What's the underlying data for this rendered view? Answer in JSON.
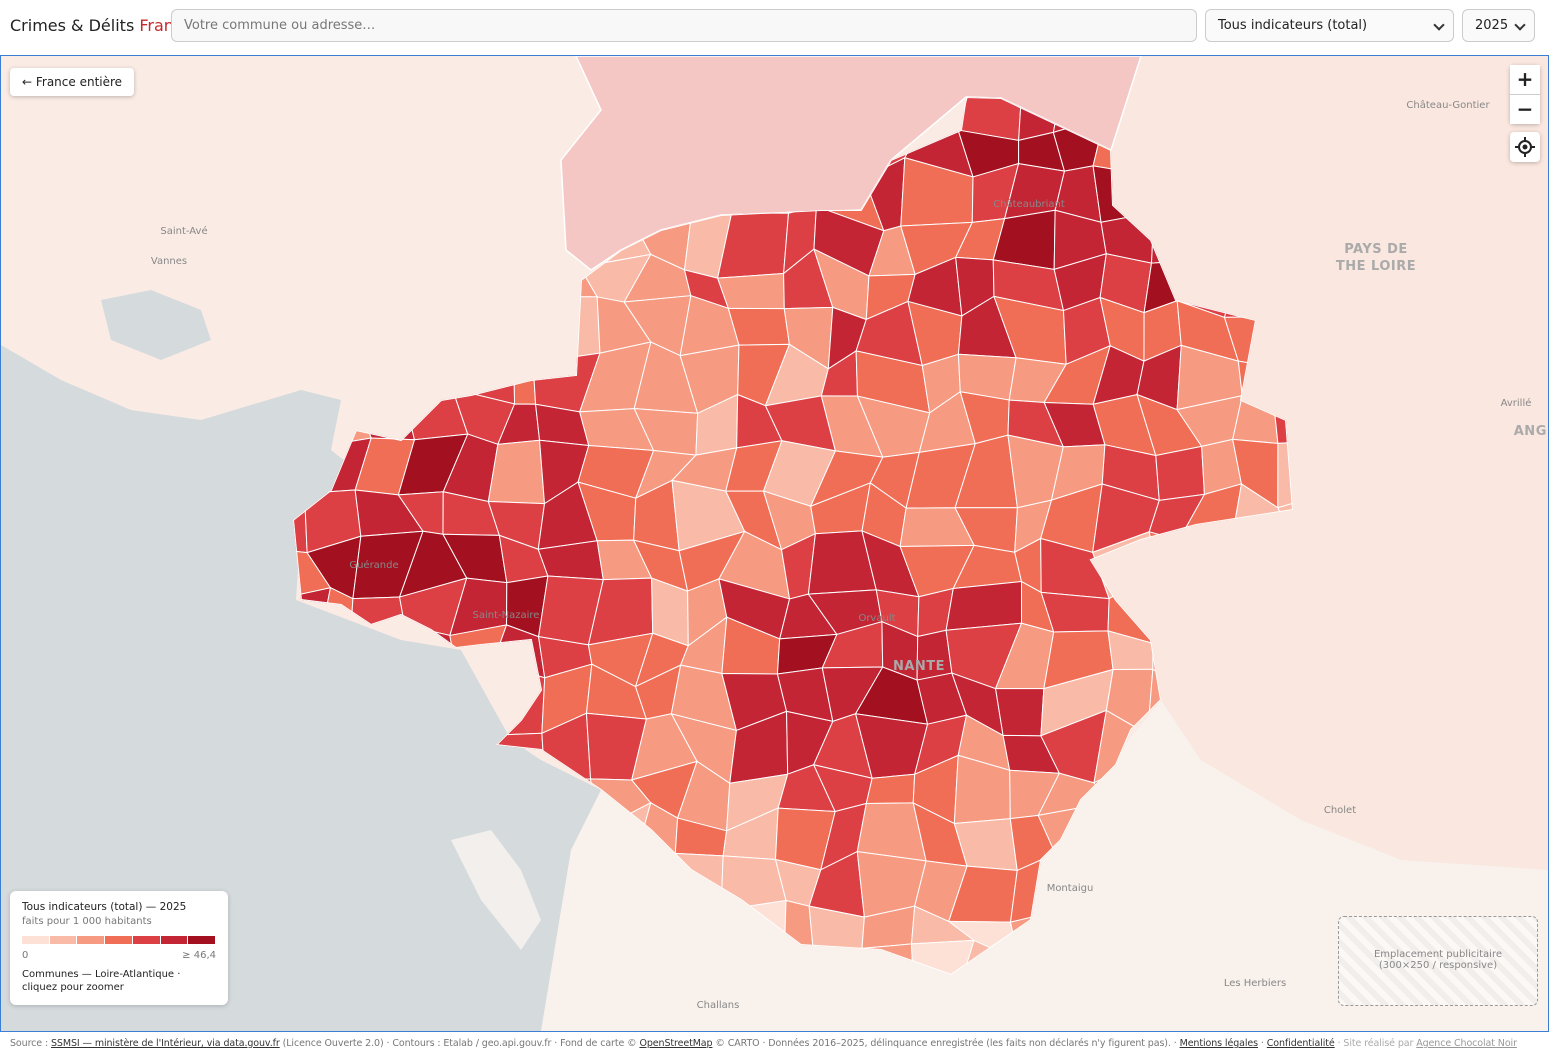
{
  "header": {
    "brand": "Crimes & Délits",
    "brand_accent": "France",
    "search_placeholder": "Votre commune ou adresse…",
    "indicator_select": "Tous indicateurs (total)",
    "year_select": "2025"
  },
  "map": {
    "back_button": "← France entière",
    "zoom_in": "+",
    "zoom_out": "−",
    "place_labels": [
      "Château-Gontier",
      "Saint-Avé",
      "Vannes",
      "PAYS DE",
      "THE LOIRE",
      "Avrillé",
      "ANGE",
      "Châteaubriant",
      "Guérande",
      "NANTE",
      "Cholet",
      "Montaigu",
      "Les Herbiers",
      "Challans",
      "Saint-Nazaire",
      "Orvault"
    ]
  },
  "legend": {
    "title": "Tous indicateurs (total) — 2025",
    "subtitle": "faits pour 1 000 habitants",
    "min_label": "0",
    "max_label": "≥ 46,4",
    "note": "Communes — Loire-Atlantique · cliquez pour zoomer",
    "colors": [
      "#fde0d6",
      "#f9bba8",
      "#f69a82",
      "#f06e56",
      "#dc4045",
      "#c42535",
      "#a3101f"
    ]
  },
  "ad": {
    "line1": "Emplacement publicitaire",
    "line2": "(300×250 / responsive)"
  },
  "footer": {
    "source_prefix": "Source :",
    "source_link": "SSMSI — ministère de l'Intérieur, via data.gouv.fr",
    "source_rest": "(Licence Ouverte 2.0) · Contours : Etalab / geo.api.gouv.fr · Fond de carte ©",
    "osm_link": "OpenStreetMap",
    "carto_rest": "© CARTO · Données 2016–2025, délinquance enregistrée (les faits non déclarés n'y figurent pas). ·",
    "legal_link": "Mentions légales",
    "sep": "·",
    "privacy_link": "Confidentialité",
    "credit_prefix": "· Site réalisé par",
    "credit_link": "Agence Chocolat Noir"
  }
}
